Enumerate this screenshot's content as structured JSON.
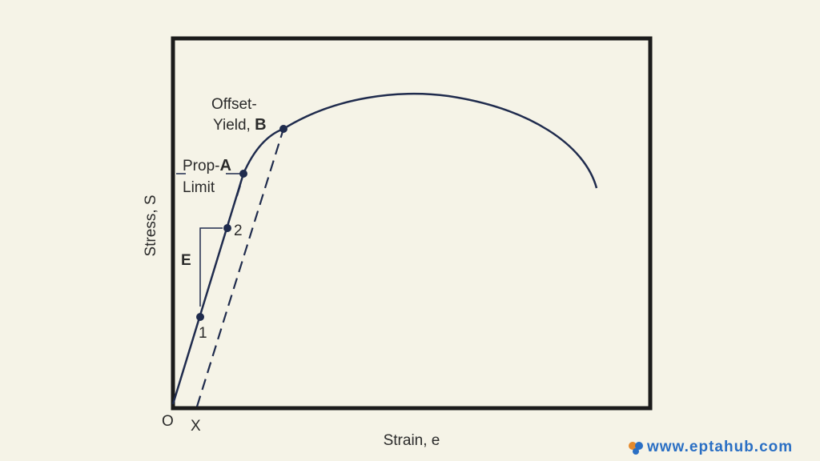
{
  "axes": {
    "y_label": "Stress, S",
    "x_label": "Strain, e",
    "origin": "O",
    "offset_origin": "X"
  },
  "labels": {
    "offset_yield": [
      "Offset-",
      "Yield,",
      "B"
    ],
    "prop_limit": [
      "Prop-",
      "A",
      "Limit"
    ],
    "modulus": "E",
    "point_1": "1",
    "point_2": "2"
  },
  "watermark": "www.eptahub.com"
}
